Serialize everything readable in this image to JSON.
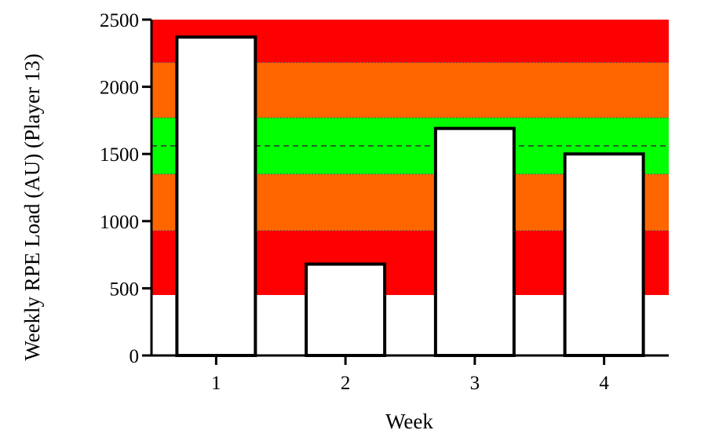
{
  "chart_data": {
    "type": "bar",
    "categories": [
      "1",
      "2",
      "3",
      "4"
    ],
    "values": [
      2370,
      680,
      1690,
      1500
    ],
    "xlabel": "Week",
    "ylabel": "Weekly RPE Load (AU) (Player 13)",
    "ylim": [
      0,
      2500
    ],
    "yticks": [
      0,
      500,
      1000,
      1500,
      2000,
      2500
    ],
    "bar_fill": "#ffffff",
    "bar_stroke": "#000000",
    "reference_line": 1560,
    "bands": [
      {
        "from": 450,
        "to": 930,
        "color": "#ff0000"
      },
      {
        "from": 930,
        "to": 1350,
        "color": "#ff6600"
      },
      {
        "from": 1350,
        "to": 1770,
        "color": "#00ff00"
      },
      {
        "from": 1770,
        "to": 2180,
        "color": "#ff6600"
      },
      {
        "from": 2180,
        "to": 2500,
        "color": "#ff0000"
      }
    ],
    "grid": false,
    "legend": "none"
  }
}
